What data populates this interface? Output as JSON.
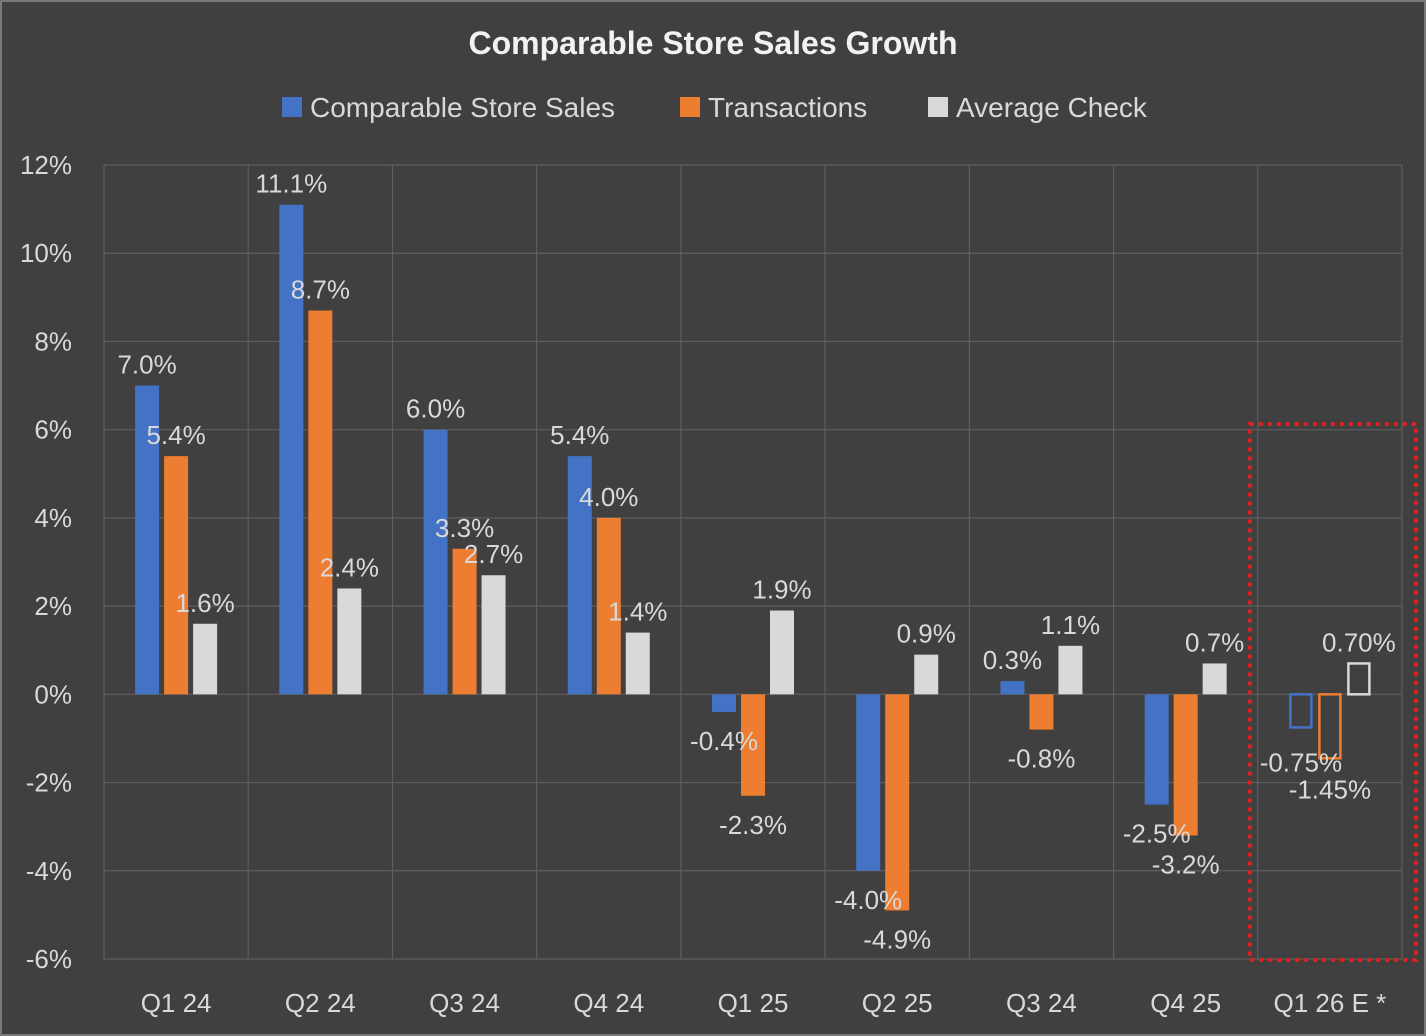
{
  "chart_data": {
    "type": "bar",
    "title": "Comparable Store Sales Growth",
    "xlabel": "",
    "ylabel": "",
    "categories": [
      "Q1 24",
      "Q2 24",
      "Q3 24",
      "Q4 24",
      "Q1 25",
      "Q2 25",
      "Q3 24",
      "Q4 25",
      "Q1 26 E *"
    ],
    "series": [
      {
        "name": "Comparable Store Sales",
        "color": "#4472c4",
        "values": [
          7.0,
          11.1,
          6.0,
          5.4,
          -0.4,
          -4.0,
          0.3,
          -2.5,
          -0.75
        ],
        "labels": [
          "7.0%",
          "11.1%",
          "6.0%",
          "5.4%",
          "-0.4%",
          "-4.0%",
          "0.3%",
          "-2.5%",
          "-0.75%"
        ]
      },
      {
        "name": "Transactions",
        "color": "#ed7d31",
        "values": [
          5.4,
          8.7,
          3.3,
          4.0,
          -2.3,
          -4.9,
          -0.8,
          -3.2,
          -1.45
        ],
        "labels": [
          "5.4%",
          "8.7%",
          "3.3%",
          "4.0%",
          "-2.3%",
          "-4.9%",
          "-0.8%",
          "-3.2%",
          "-1.45%"
        ]
      },
      {
        "name": "Average Check",
        "color": "#d9d9d9",
        "values": [
          1.6,
          2.4,
          2.7,
          1.4,
          1.9,
          0.9,
          1.1,
          0.7,
          0.7
        ],
        "labels": [
          "1.6%",
          "2.4%",
          "2.7%",
          "1.4%",
          "1.9%",
          "0.9%",
          "1.1%",
          "0.7%",
          "0.70%"
        ]
      }
    ],
    "estimate_category_index": 8,
    "estimate_highlight_color": "#e02020",
    "ylim": [
      -6,
      12
    ],
    "yticks": [
      -6,
      -4,
      -2,
      0,
      2,
      4,
      6,
      8,
      10,
      12
    ],
    "ytick_labels": [
      "-6%",
      "-4%",
      "-2%",
      "0%",
      "2%",
      "4%",
      "6%",
      "8%",
      "10%",
      "12%"
    ],
    "grid": true,
    "legend_position": "top-center"
  }
}
